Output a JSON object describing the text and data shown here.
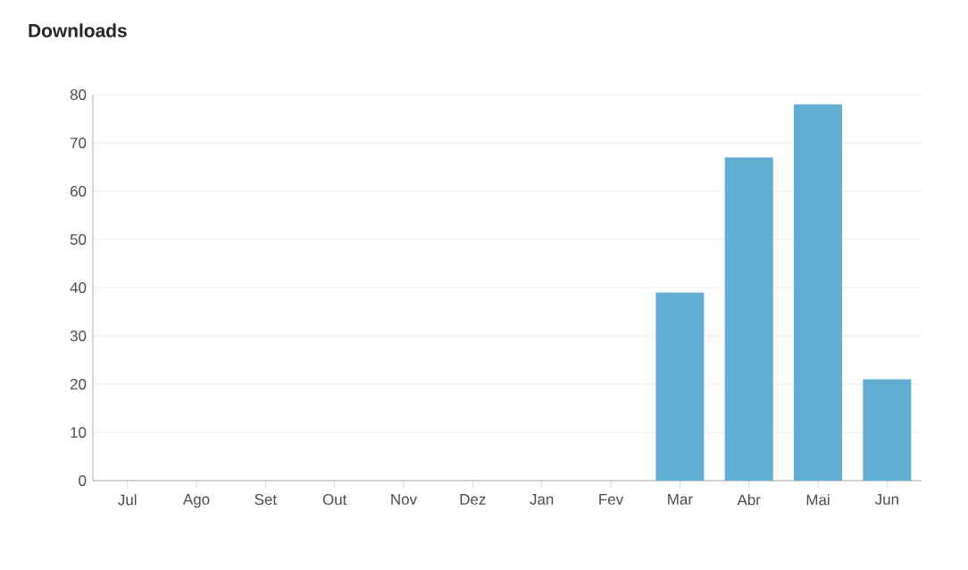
{
  "chart_data": {
    "type": "bar",
    "title": "Downloads",
    "categories": [
      "Jul",
      "Ago",
      "Set",
      "Out",
      "Nov",
      "Dez",
      "Jan",
      "Fev",
      "Mar",
      "Abr",
      "Mai",
      "Jun"
    ],
    "values": [
      0,
      0,
      0,
      0,
      0,
      0,
      0,
      0,
      39,
      67,
      78,
      21
    ],
    "color": "#62aed2",
    "ylim": [
      0,
      80
    ],
    "yticks": [
      0,
      10,
      20,
      30,
      40,
      50,
      60,
      70,
      80
    ],
    "grid": "y"
  }
}
